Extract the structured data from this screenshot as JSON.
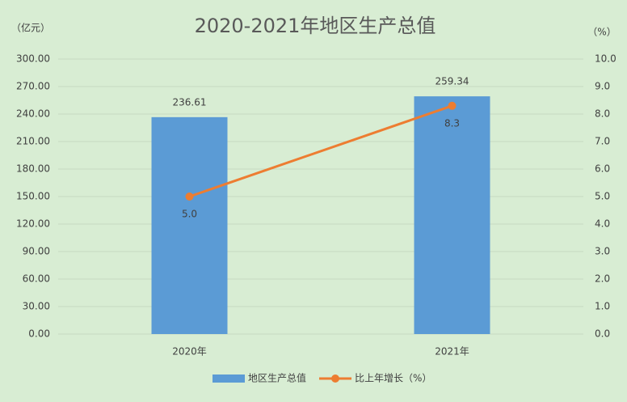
{
  "chart_data": {
    "type": "bar",
    "title": "2020-2021年地区生产总值",
    "y_label": "（亿元）",
    "y2_label": "（%）",
    "categories": [
      "2020年",
      "2021年"
    ],
    "series": [
      {
        "name": "地区生产总值",
        "type": "bar",
        "color": "#5b9bd5",
        "values": [
          236.61,
          259.34
        ]
      },
      {
        "name": "比上年增长（%）",
        "type": "line",
        "axis": "y2",
        "color": "#ed7d31",
        "values": [
          5.0,
          8.3
        ],
        "value_labels": [
          "5.0",
          "8.3"
        ]
      }
    ],
    "ylim": [
      0,
      300
    ],
    "yticks": [
      {
        "value": 0,
        "label": "0.00"
      },
      {
        "value": 30,
        "label": "30.00"
      },
      {
        "value": 60,
        "label": "60.00"
      },
      {
        "value": 90,
        "label": "90.00"
      },
      {
        "value": 120,
        "label": "120.00"
      },
      {
        "value": 150,
        "label": "150.00"
      },
      {
        "value": 180,
        "label": "180.00"
      },
      {
        "value": 210,
        "label": "210.00"
      },
      {
        "value": 240,
        "label": "240.00"
      },
      {
        "value": 270,
        "label": "270.00"
      },
      {
        "value": 300,
        "label": "300.00"
      }
    ],
    "y2lim": [
      0,
      10
    ],
    "y2ticks": [
      {
        "value": 0,
        "label": "0.0"
      },
      {
        "value": 1,
        "label": "1.0"
      },
      {
        "value": 2,
        "label": "2.0"
      },
      {
        "value": 3,
        "label": "3.0"
      },
      {
        "value": 4,
        "label": "4.0"
      },
      {
        "value": 5,
        "label": "5.0"
      },
      {
        "value": 6,
        "label": "6.0"
      },
      {
        "value": 7,
        "label": "7.0"
      },
      {
        "value": 8,
        "label": "8.0"
      },
      {
        "value": 9,
        "label": "9.0"
      },
      {
        "value": 10,
        "label": "10.0"
      }
    ],
    "grid": true
  }
}
